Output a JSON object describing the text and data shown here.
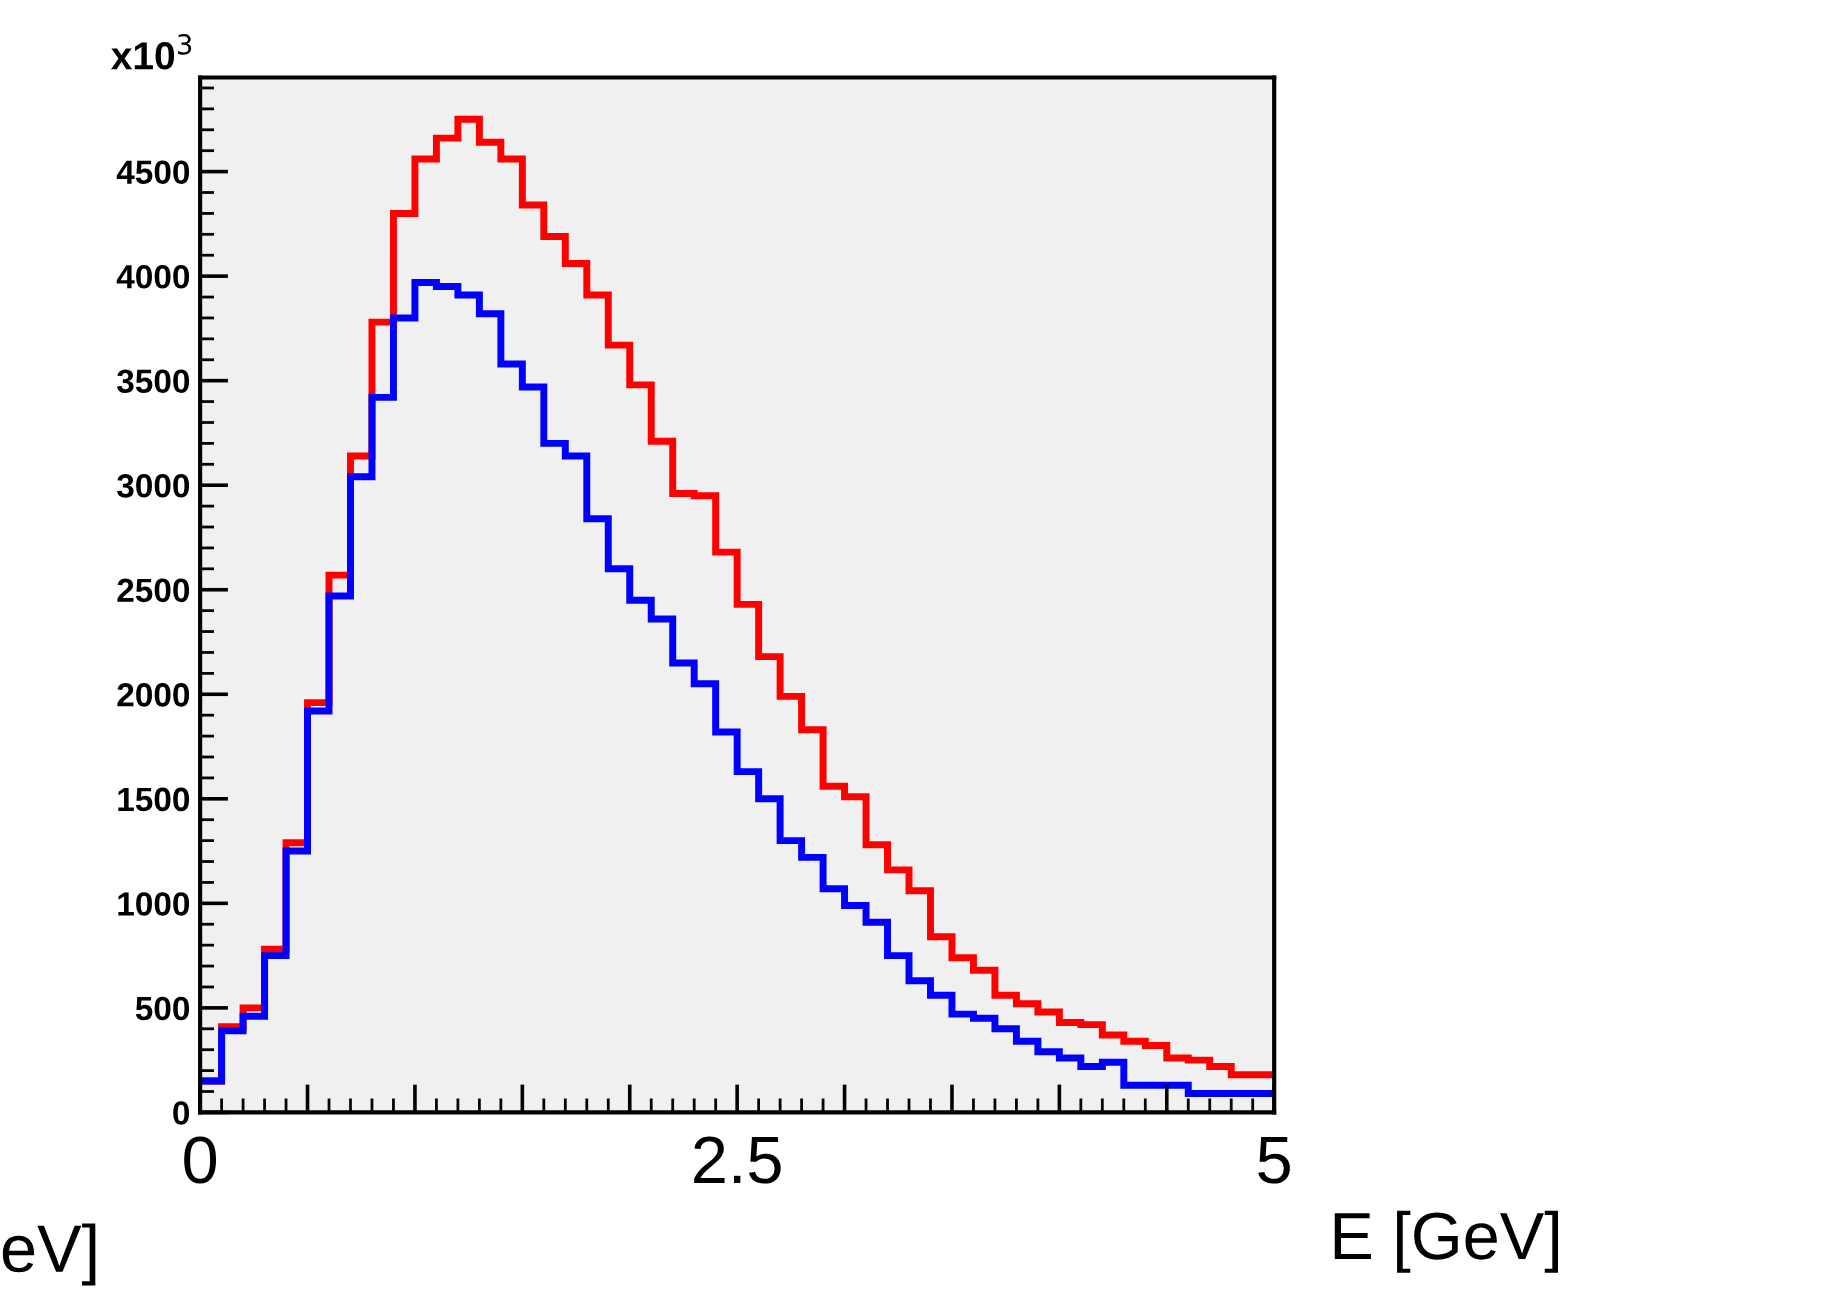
{
  "chart_data": {
    "type": "histogram",
    "bins": [
      0,
      0.1,
      0.2,
      0.3,
      0.4,
      0.5,
      0.6,
      0.7,
      0.8,
      0.9,
      1.0,
      1.1,
      1.2,
      1.3,
      1.4,
      1.5,
      1.6,
      1.7,
      1.8,
      1.9,
      2.0,
      2.1,
      2.2,
      2.3,
      2.4,
      2.5,
      2.6,
      2.7,
      2.8,
      2.9,
      3.0,
      3.1,
      3.2,
      3.3,
      3.4,
      3.5,
      3.6,
      3.7,
      3.8,
      3.9,
      4.0,
      4.1,
      4.2,
      4.3,
      4.4,
      4.5,
      4.6,
      4.7,
      4.8,
      4.9,
      5.0
    ],
    "series": [
      {
        "color": "#ff0000",
        "values": [
          150,
          410,
          500,
          780,
          1290,
          1960,
          2570,
          3140,
          3780,
          4300,
          4560,
          4660,
          4750,
          4640,
          4560,
          4340,
          4190,
          4060,
          3910,
          3670,
          3480,
          3210,
          2960,
          2950,
          2680,
          2430,
          2180,
          1990,
          1830,
          1560,
          1510,
          1280,
          1160,
          1060,
          840,
          740,
          680,
          560,
          520,
          480,
          430,
          420,
          370,
          340,
          320,
          260,
          250,
          220,
          180,
          180
        ]
      },
      {
        "color": "#0000ff",
        "values": [
          150,
          390,
          460,
          750,
          1250,
          1920,
          2470,
          3040,
          3420,
          3800,
          3970,
          3950,
          3910,
          3820,
          3580,
          3470,
          3200,
          3140,
          2840,
          2600,
          2450,
          2360,
          2150,
          2050,
          1820,
          1630,
          1500,
          1300,
          1220,
          1070,
          990,
          910,
          750,
          630,
          560,
          470,
          450,
          400,
          340,
          290,
          260,
          220,
          240,
          130,
          130,
          130,
          90,
          90,
          90,
          90
        ]
      }
    ],
    "xlim": [
      0,
      5
    ],
    "ylim": [
      0,
      4950
    ],
    "xticks": [
      0,
      {
        "value": 0.5,
        "label": null
      },
      {
        "value": 1,
        "label": null
      },
      {
        "value": 1.5,
        "label": null
      },
      {
        "value": 2,
        "label": null
      },
      2.5,
      {
        "value": 3,
        "label": null
      },
      {
        "value": 3.5,
        "label": null
      },
      {
        "value": 4,
        "label": null
      },
      {
        "value": 4.5,
        "label": null
      },
      5
    ],
    "yticks": [
      0,
      500,
      1000,
      1500,
      2000,
      2500,
      3000,
      3500,
      4000,
      4500
    ],
    "xlabel": "E [GeV]",
    "annotations": [
      "x10$^{3}$",
      "eV]"
    ],
    "grid": false
  }
}
